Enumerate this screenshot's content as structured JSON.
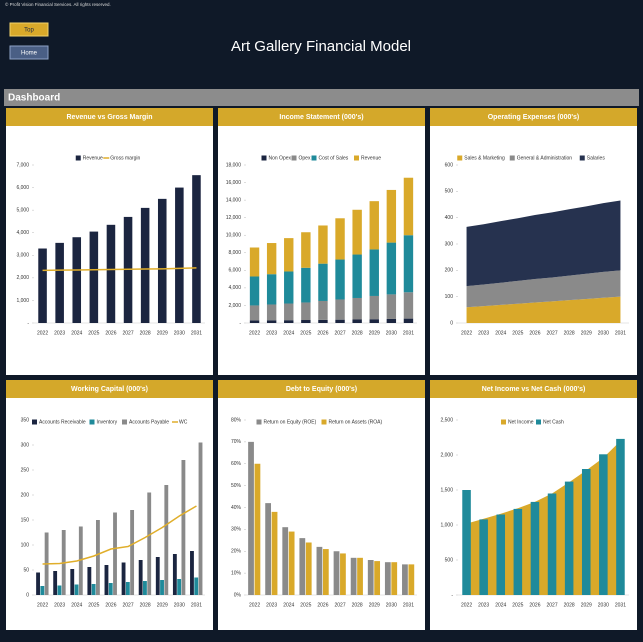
{
  "header": {
    "copyright": "© Profit Vision Financial Services. All rights reserved.",
    "buttons": [
      "Top",
      "Home"
    ],
    "title": "Art Gallery Financial Model",
    "section": "Dashboard"
  },
  "chart_data": [
    {
      "type": "bar",
      "title": "Revenue vs Gross Margin",
      "categories": [
        "2022",
        "2023",
        "2024",
        "2025",
        "2026",
        "2027",
        "2028",
        "2029",
        "2030",
        "2031"
      ],
      "series": [
        {
          "name": "Revenue",
          "color": "#1b2540",
          "values": [
            3300,
            3550,
            3800,
            4050,
            4350,
            4700,
            5100,
            5500,
            6000,
            6550
          ]
        },
        {
          "name": "Gross margin",
          "color": "#e0ae2a",
          "kind": "line",
          "values": [
            2330,
            2340,
            2350,
            2360,
            2370,
            2380,
            2390,
            2400,
            2420,
            2440
          ]
        }
      ],
      "ylim": [
        0,
        7000
      ],
      "yticks": [
        {
          "value": 0,
          "label": "-"
        },
        {
          "value": 1000,
          "label": "1,000"
        },
        {
          "value": 2000,
          "label": "2,000"
        },
        {
          "value": 3000,
          "label": "3,000"
        },
        {
          "value": 4000,
          "label": "4,000"
        },
        {
          "value": 5000,
          "label": "5,000"
        },
        {
          "value": 6000,
          "label": "6,000"
        },
        {
          "value": 7000,
          "label": "7,000"
        }
      ],
      "stacked": false,
      "grid": false,
      "legend": "top"
    },
    {
      "type": "bar",
      "title": "Income Statement (000's)",
      "categories": [
        "2022",
        "2023",
        "2024",
        "2025",
        "2026",
        "2027",
        "2028",
        "2029",
        "2030",
        "2031"
      ],
      "series": [
        {
          "name": "Non Opex",
          "color": "#1b2540",
          "values": [
            300,
            310,
            320,
            340,
            360,
            380,
            400,
            430,
            460,
            500
          ]
        },
        {
          "name": "Opex",
          "color": "#8a8a8a",
          "values": [
            1700,
            1800,
            1900,
            2000,
            2150,
            2300,
            2450,
            2650,
            2800,
            3000
          ]
        },
        {
          "name": "Cost of Sales",
          "color": "#1f8a9a",
          "values": [
            3300,
            3450,
            3650,
            3950,
            4250,
            4550,
            4950,
            5300,
            5900,
            6500
          ]
        },
        {
          "name": "Revenue",
          "color": "#d9a92a",
          "values": [
            3300,
            3550,
            3800,
            4050,
            4350,
            4700,
            5100,
            5500,
            6000,
            6550
          ]
        }
      ],
      "ylim": [
        0,
        18000
      ],
      "yticks": [
        {
          "value": 0,
          "label": "-"
        },
        {
          "value": 2000,
          "label": "2,000"
        },
        {
          "value": 4000,
          "label": "4,000"
        },
        {
          "value": 6000,
          "label": "6,000"
        },
        {
          "value": 8000,
          "label": "8,000"
        },
        {
          "value": 10000,
          "label": "10,000"
        },
        {
          "value": 12000,
          "label": "12,000"
        },
        {
          "value": 14000,
          "label": "14,000"
        },
        {
          "value": 16000,
          "label": "16,000"
        },
        {
          "value": 18000,
          "label": "18,000"
        }
      ],
      "stacked": true,
      "grid": false,
      "legend": "top"
    },
    {
      "type": "area",
      "title": "Operating Expenses (000's)",
      "categories": [
        "2022",
        "2023",
        "2024",
        "2025",
        "2026",
        "2027",
        "2028",
        "2029",
        "2030",
        "2031"
      ],
      "series": [
        {
          "name": "Sales & Marketing",
          "color": "#d9a92a",
          "values": [
            60,
            64,
            69,
            73,
            78,
            82,
            87,
            91,
            96,
            100
          ]
        },
        {
          "name": "General & Administration",
          "color": "#8a8a8a",
          "values": [
            80,
            82,
            84,
            87,
            89,
            91,
            93,
            96,
            98,
            100
          ]
        },
        {
          "name": "Salaries",
          "color": "#26324f",
          "values": [
            225,
            229,
            234,
            238,
            243,
            247,
            252,
            256,
            261,
            265
          ]
        }
      ],
      "ylim": [
        0,
        600
      ],
      "yticks": [
        0,
        100,
        200,
        300,
        400,
        500,
        600
      ],
      "stacked": true,
      "grid": false,
      "legend": "top"
    },
    {
      "type": "bar",
      "title": "Working Capital (000's)",
      "categories": [
        "2022",
        "2023",
        "2024",
        "2025",
        "2026",
        "2027",
        "2028",
        "2029",
        "2030",
        "2031"
      ],
      "series": [
        {
          "name": "Accounts Receivable",
          "color": "#1b2540",
          "values": [
            45,
            48,
            52,
            56,
            60,
            65,
            70,
            76,
            82,
            88
          ]
        },
        {
          "name": "Inventory",
          "color": "#1f8a9a",
          "values": [
            18,
            19,
            21,
            22,
            24,
            26,
            28,
            30,
            32,
            35
          ]
        },
        {
          "name": "Accounts Payable",
          "color": "#8a8a8a",
          "values": [
            125,
            130,
            137,
            150,
            165,
            170,
            205,
            220,
            270,
            305
          ]
        },
        {
          "name": "WC",
          "color": "#e0ae2a",
          "kind": "line",
          "values": [
            62,
            63,
            68,
            78,
            92,
            97,
            115,
            135,
            158,
            178
          ]
        }
      ],
      "ylim": [
        0,
        350
      ],
      "yticks": [
        0,
        50,
        100,
        150,
        200,
        250,
        300,
        350
      ],
      "stacked": false,
      "grid": false,
      "legend": "top"
    },
    {
      "type": "bar",
      "title": "Debt to Equity (000's)",
      "categories": [
        "2022",
        "2023",
        "2024",
        "2025",
        "2026",
        "2027",
        "2028",
        "2029",
        "2030",
        "2031"
      ],
      "series": [
        {
          "name": "Return on Equity (ROE)",
          "color": "#8a8a8a",
          "values": [
            70,
            42,
            31,
            26,
            22,
            20,
            17,
            16,
            15,
            14
          ]
        },
        {
          "name": "Return on Assets (ROA)",
          "color": "#d9a92a",
          "values": [
            60,
            38,
            29,
            24,
            21,
            19,
            17,
            15.5,
            15,
            14
          ]
        }
      ],
      "ylim": [
        0,
        80
      ],
      "yticks": [
        {
          "value": 0,
          "label": "0%"
        },
        {
          "value": 10,
          "label": "10%"
        },
        {
          "value": 20,
          "label": "20%"
        },
        {
          "value": 30,
          "label": "30%"
        },
        {
          "value": 40,
          "label": "40%"
        },
        {
          "value": 50,
          "label": "50%"
        },
        {
          "value": 60,
          "label": "60%"
        },
        {
          "value": 70,
          "label": "70%"
        },
        {
          "value": 80,
          "label": "80%"
        }
      ],
      "stacked": false,
      "grid": false,
      "legend": "top"
    },
    {
      "type": "bar",
      "title": "Net Income vs Net Cash (000's)",
      "categories": [
        "2022",
        "2023",
        "2024",
        "2025",
        "2026",
        "2027",
        "2028",
        "2029",
        "2030",
        "2031"
      ],
      "series": [
        {
          "name": "Net Income",
          "color": "#d9a92a",
          "kind": "area",
          "values": [
            1020,
            1090,
            1160,
            1240,
            1330,
            1450,
            1610,
            1780,
            1960,
            2200
          ]
        },
        {
          "name": "Net Cash",
          "color": "#1f8a9a",
          "values": [
            1500,
            1080,
            1150,
            1230,
            1330,
            1450,
            1620,
            1800,
            2010,
            2230
          ]
        }
      ],
      "ylim": [
        0,
        2500
      ],
      "yticks": [
        {
          "value": 0,
          "label": "-"
        },
        500,
        {
          "value": 1000,
          "label": "1,000"
        },
        {
          "value": 1500,
          "label": "1,500"
        },
        {
          "value": 2000,
          "label": "2,000"
        },
        {
          "value": 2500,
          "label": "2,500"
        }
      ],
      "stacked": false,
      "grid": false,
      "legend": "top"
    }
  ]
}
